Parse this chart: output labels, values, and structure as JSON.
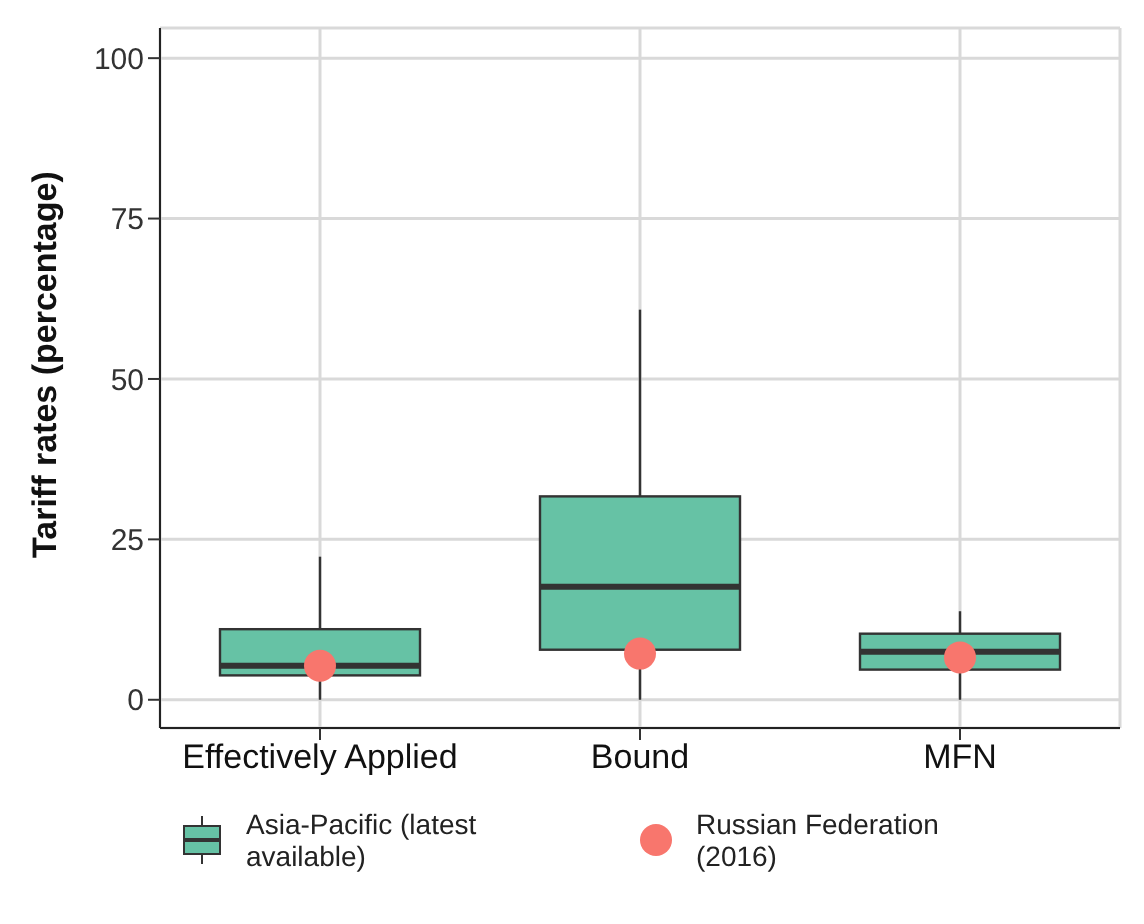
{
  "chart_data": {
    "type": "box",
    "ylabel": "Tariff rates (percentage)",
    "categories": [
      "Effectively Applied",
      "Bound",
      "MFN"
    ],
    "ylim": [
      -4.4,
      104.7
    ],
    "yticks": [
      0,
      25,
      50,
      75,
      100
    ],
    "grid": true,
    "legend": "bottom",
    "series": [
      {
        "name": "Asia-Pacific (latest available)",
        "color": "#66c2a5",
        "boxes": [
          {
            "low": 0,
            "q1": 3.8,
            "median": 5.3,
            "q3": 11,
            "high": 22.3
          },
          {
            "low": 0,
            "q1": 7.8,
            "median": 17.6,
            "q3": 31.7,
            "high": 60.8
          },
          {
            "low": 0,
            "q1": 4.7,
            "median": 7.5,
            "q3": 10.3,
            "high": 13.8
          }
        ]
      },
      {
        "name": "Russian Federation (2016)",
        "type": "scatter",
        "color": "#f8766d",
        "marker": "circle",
        "x": [
          "Effectively Applied",
          "Bound",
          "MFN"
        ],
        "values": [
          5.3,
          7.2,
          6.6
        ]
      }
    ]
  }
}
